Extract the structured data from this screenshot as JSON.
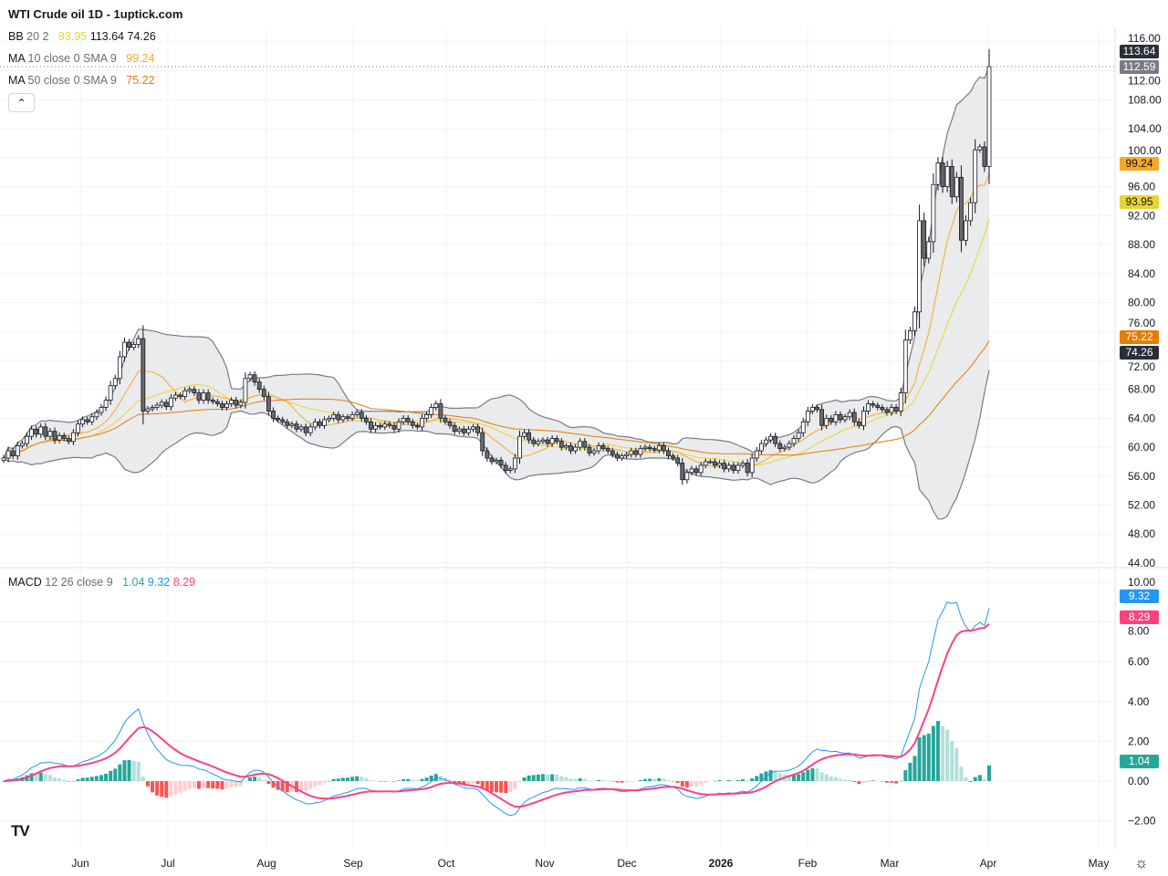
{
  "header": {
    "title": "WTI Crude oil  1D - 1uptick.com"
  },
  "legend": {
    "bb": {
      "label": "BB",
      "params": "20 2",
      "basis": "93.95",
      "upper": "113.64",
      "lower": "74.26"
    },
    "ma10": {
      "label": "MA",
      "params": "10 close 0 SMA 9",
      "value": "99.24"
    },
    "ma50": {
      "label": "MA",
      "params": "50 close 0 SMA 9",
      "value": "75.22"
    },
    "macd": {
      "label": "MACD",
      "params": "12 26 close 9",
      "hist": "1.04",
      "macd": "9.32",
      "signal": "8.29"
    },
    "collapse_icon": "chevron-up"
  },
  "price_tags": {
    "bb_upper": "113.64",
    "last": "112.59",
    "ma10": "99.24",
    "bb_basis": "93.95",
    "ma50": "75.22",
    "bb_lower": "74.26"
  },
  "macd_tags": {
    "macd": "9.32",
    "signal": "8.29",
    "hist": "1.04"
  },
  "colors": {
    "bb_band": "#787b86",
    "bb_fill": "#e8e9ea",
    "bb_basis": "#e8d432",
    "ma10": "#f9a825",
    "ma50": "#e67c00",
    "up_body": "#ffffff",
    "down_body": "#6a6a6a",
    "wick": "#131722",
    "macd_line": "#2196f3",
    "signal_line": "#ff4081",
    "hist_pos_up": "#26a69a",
    "hist_pos_down": "#b2dfdb",
    "hist_neg_up": "#ffcdd2",
    "hist_neg_down": "#ff5252",
    "tag_dark": "#2a2e39",
    "tag_last": "#787b86"
  },
  "chart_data": {
    "type": "candlestick",
    "symbol": "WTI Crude oil",
    "interval": "1D",
    "price_axis": {
      "ticks": [
        "116.00",
        "112.00",
        "108.00",
        "104.00",
        "100.00",
        "96.00",
        "92.00",
        "88.00",
        "84.00",
        "80.00",
        "76.00",
        "72.00",
        "68.00",
        "64.00",
        "60.00",
        "56.00",
        "52.00",
        "48.00",
        "44.00"
      ],
      "range": [
        44,
        116
      ]
    },
    "macd_axis": {
      "ticks": [
        "10.00",
        "8.00",
        "6.00",
        "4.00",
        "2.00",
        "0.00",
        "−2.00"
      ],
      "range": [
        -2.8,
        10.5
      ]
    },
    "time_axis": [
      "Jun",
      "Jul",
      "Aug",
      "Sep",
      "Oct",
      "Nov",
      "Dec",
      "2026",
      "Feb",
      "Mar",
      "Apr",
      "May"
    ],
    "grid": true,
    "indicators": [
      "BB 20 2",
      "MA 10",
      "MA 50",
      "MACD 12 26 9"
    ],
    "closes": [
      58.5,
      59.5,
      58.8,
      60.2,
      60.5,
      61.5,
      62.5,
      61.8,
      62.8,
      61.5,
      62.2,
      61.0,
      61.6,
      61.2,
      60.8,
      62.0,
      63.2,
      63.8,
      63.5,
      64.2,
      64.8,
      65.5,
      66.5,
      68.5,
      69.5,
      72.5,
      74.5,
      73.8,
      74.2,
      75.0,
      65.0,
      65.3,
      65.5,
      65.8,
      66.2,
      65.6,
      66.8,
      67.2,
      67.0,
      67.8,
      68.0,
      67.5,
      66.5,
      67.5,
      66.5,
      66.3,
      66.0,
      65.5,
      66.0,
      66.5,
      65.8,
      66.2,
      69.5,
      70.0,
      69.0,
      68.0,
      67.0,
      65.0,
      64.0,
      63.8,
      63.5,
      63.0,
      63.2,
      62.5,
      62.8,
      62.0,
      62.8,
      63.5,
      63.0,
      63.8,
      64.0,
      64.5,
      63.8,
      64.2,
      64.0,
      64.5,
      64.8,
      64.0,
      63.5,
      62.5,
      63.0,
      62.8,
      63.2,
      63.0,
      62.5,
      63.5,
      64.0,
      63.5,
      63.0,
      62.8,
      64.0,
      64.5,
      65.5,
      66.0,
      64.0,
      63.5,
      63.0,
      62.2,
      62.5,
      62.0,
      62.5,
      62.8,
      62.0,
      59.5,
      58.5,
      58.0,
      58.2,
      57.5,
      56.8,
      57.0,
      58.5,
      61.5,
      62.0,
      61.0,
      60.5,
      60.8,
      61.0,
      60.5,
      61.2,
      60.8,
      60.0,
      60.2,
      59.5,
      60.0,
      60.8,
      60.0,
      59.2,
      59.5,
      60.2,
      59.8,
      59.5,
      59.0,
      58.5,
      58.8,
      59.0,
      59.5,
      59.0,
      59.8,
      60.0,
      59.8,
      59.6,
      60.2,
      59.5,
      58.8,
      58.5,
      57.8,
      55.5,
      56.5,
      57.0,
      56.5,
      57.5,
      58.0,
      58.0,
      57.5,
      57.8,
      57.0,
      57.5,
      56.8,
      57.5,
      57.8,
      56.5,
      58.5,
      59.5,
      60.5,
      61.0,
      61.5,
      60.5,
      59.8,
      60.0,
      60.5,
      61.2,
      62.0,
      63.5,
      65.0,
      65.5,
      65.2,
      63.0,
      64.0,
      63.5,
      64.5,
      63.8,
      64.2,
      64.8,
      63.5,
      63.0,
      65.0,
      66.0,
      65.8,
      65.5,
      65.2,
      64.8,
      65.5,
      65.0,
      67.5,
      74.8,
      76.1,
      78.7,
      91.3,
      86.1,
      88.4,
      96.3,
      99.3,
      96.0,
      98.8,
      94.6,
      97.3,
      88.6,
      91.3,
      93.8,
      101.1,
      101.5,
      98.8,
      112.59
    ]
  }
}
